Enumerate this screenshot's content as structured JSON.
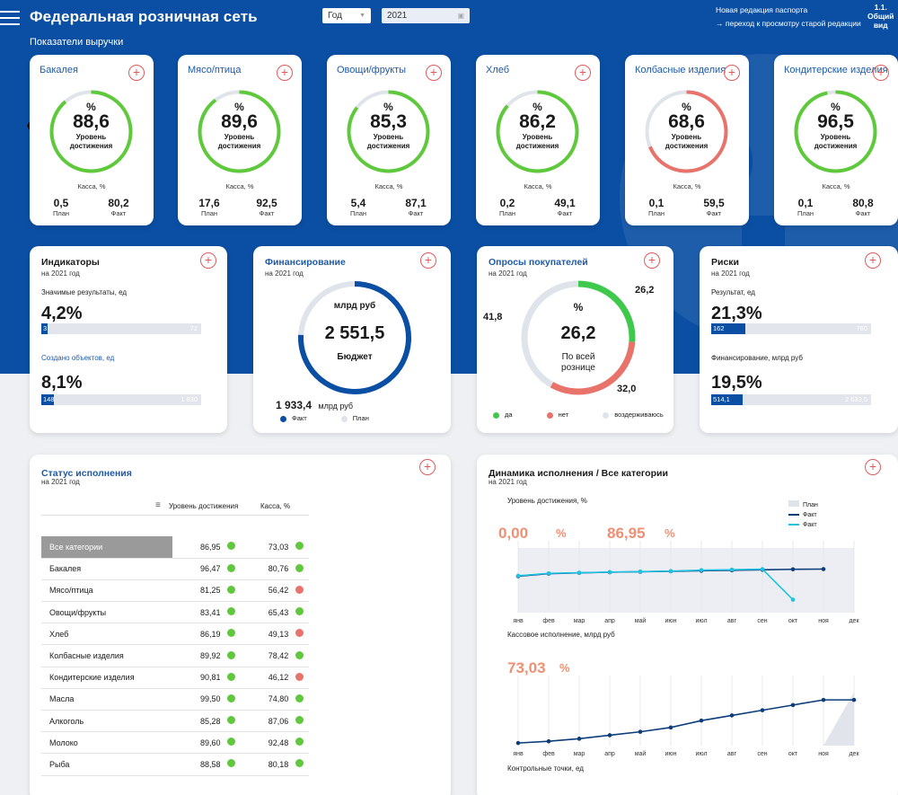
{
  "header": {
    "title": "Федеральная розничная сеть",
    "period_select": "Год",
    "year_select": "2021",
    "new_edition": "Новая редакция паспорта",
    "old_edition_link": "→ переход к просмотру старой редакции",
    "view_label_1": "1.1.",
    "view_label_2": "Общий",
    "view_label_3": "вид",
    "subtitle": "Показатели выручки"
  },
  "revenue": {
    "pct_symbol": "%",
    "level_label_1": "Уровень",
    "level_label_2": "достижения",
    "kassa_label": "Касса, %",
    "plan_label": "План",
    "fact_label": "Факт",
    "cards": [
      {
        "name": "Бакалея",
        "value": "88,6",
        "plan": "0,5",
        "fact": "80,2",
        "ratio": 0.886,
        "color": "#5fc93c"
      },
      {
        "name": "Мясо/птица",
        "value": "89,6",
        "plan": "17,6",
        "fact": "92,5",
        "ratio": 0.896,
        "color": "#5fc93c"
      },
      {
        "name": "Овощи/фрукты",
        "value": "85,3",
        "plan": "5,4",
        "fact": "87,1",
        "ratio": 0.853,
        "color": "#5fc93c"
      },
      {
        "name": "Хлеб",
        "value": "86,2",
        "plan": "0,2",
        "fact": "49,1",
        "ratio": 0.862,
        "color": "#5fc93c"
      },
      {
        "name": "Колбасные изделия",
        "value": "68,6",
        "plan": "0,1",
        "fact": "59,5",
        "ratio": 0.686,
        "color": "#e8736b"
      },
      {
        "name": "Кондитерские изделия",
        "value": "96,5",
        "plan": "0,1",
        "fact": "80,8",
        "ratio": 0.965,
        "color": "#5fc93c"
      }
    ]
  },
  "indicators": {
    "title": "Индикаторы",
    "sub": "на 2021 год",
    "label1": "Значимые результаты, ед",
    "value1": "4,2%",
    "bar1_fill": "3",
    "bar1_total": "72",
    "bar1_ratio": 0.042,
    "label2": "Создано объектов, ед",
    "value2": "8,1%",
    "bar2_fill": "148",
    "bar2_total": "1 830",
    "bar2_ratio": 0.081
  },
  "financing": {
    "title": "Финансирование",
    "sub": "на 2021 год",
    "unit": "млрд руб",
    "value": "2 551,5",
    "center_label": "Бюджет",
    "fact_value": "1 933,4",
    "fact_unit": "млрд руб",
    "legend_fact": "Факт",
    "legend_plan": "План",
    "fact_ratio": 0.758,
    "fact_color": "#0a4fa3",
    "plan_color": "#dfe3ea"
  },
  "surveys": {
    "title": "Опросы покупателей",
    "sub": "на 2021 год",
    "pct_symbol": "%",
    "value": "26,2",
    "center_label_1": "По всей",
    "center_label_2": "рознице",
    "yes_value": "26,2",
    "no_value": "32,0",
    "abstain_value": "41,8",
    "yes_ratio": 0.262,
    "no_ratio": 0.32,
    "abstain_ratio": 0.418,
    "legend_yes": "да",
    "legend_no": "нет",
    "legend_abstain": "воздерживаюсь",
    "yes_color": "#3ec94d",
    "no_color": "#e8736b",
    "abstain_color": "#dfe3ea"
  },
  "risks": {
    "title": "Риски",
    "sub": "на 2021 год",
    "label1": "Результат, ед",
    "value1": "21,3%",
    "bar1_fill": "162",
    "bar1_total": "760",
    "bar1_ratio": 0.213,
    "label2": "Финансирование, млрд руб",
    "value2": "19,5%",
    "bar2_fill": "514,1",
    "bar2_total": "2 633,5",
    "bar2_ratio": 0.195
  },
  "status": {
    "title": "Статус исполнения",
    "sub": "на 2021 год",
    "col_level": "Уровень достижения",
    "col_kassa": "Касса, %",
    "green": "#5fc93c",
    "red": "#e8736b",
    "rows": [
      {
        "name": "Все категории",
        "level": "86,95",
        "level_status": "green",
        "kassa": "73,03",
        "kassa_status": "green",
        "selected": true
      },
      {
        "name": "Бакалея",
        "level": "96,47",
        "level_status": "green",
        "kassa": "80,76",
        "kassa_status": "green"
      },
      {
        "name": "Мясо/птица",
        "level": "81,25",
        "level_status": "green",
        "kassa": "56,42",
        "kassa_status": "red"
      },
      {
        "name": "Овощи/фрукты",
        "level": "83,41",
        "level_status": "green",
        "kassa": "65,43",
        "kassa_status": "green"
      },
      {
        "name": "Хлеб",
        "level": "86,19",
        "level_status": "green",
        "kassa": "49,13",
        "kassa_status": "red"
      },
      {
        "name": "Колбасные изделия",
        "level": "89,92",
        "level_status": "green",
        "kassa": "78,42",
        "kassa_status": "green"
      },
      {
        "name": "Кондитерские изделия",
        "level": "90,81",
        "level_status": "green",
        "kassa": "46,12",
        "kassa_status": "red"
      },
      {
        "name": "Масла",
        "level": "99,50",
        "level_status": "green",
        "kassa": "74,80",
        "kassa_status": "green"
      },
      {
        "name": "Алкоголь",
        "level": "85,28",
        "level_status": "green",
        "kassa": "87,06",
        "kassa_status": "green"
      },
      {
        "name": "Молоко",
        "level": "89,60",
        "level_status": "green",
        "kassa": "92,48",
        "kassa_status": "green"
      },
      {
        "name": "Рыба",
        "level": "88,58",
        "level_status": "green",
        "kassa": "80,18",
        "kassa_status": "green"
      }
    ]
  },
  "dynamics": {
    "title": "Динамика исполнения /  Все категории",
    "sub": "на 2021 год",
    "chart1_label": "Уровень достижения, %",
    "kpi_plan": "0,00",
    "kpi_fact": "86,95",
    "kpi_pct": "%",
    "legend_plan": "План",
    "legend_fact_dark": "Факт",
    "legend_fact_light": "Факт",
    "chart2_label": "Кассовое исполнение, млрд руб",
    "kpi_kassa": "73,03",
    "bottom_label": "Контрольные точки, ед"
  },
  "chart_data": [
    {
      "type": "line",
      "x": [
        "янв",
        "фев",
        "мар",
        "апр",
        "май",
        "июн",
        "июл",
        "авг",
        "сен",
        "окт",
        "ноя",
        "дек"
      ],
      "series": [
        {
          "name": "Факт",
          "color": "#0a3d7a",
          "values": [
            82.5,
            84.1,
            84.6,
            85.0,
            85.3,
            85.6,
            85.9,
            86.2,
            86.5,
            86.8,
            86.95,
            null
          ]
        },
        {
          "name": "Факт",
          "color": "#1fc2e0",
          "values": [
            82.8,
            84.3,
            84.7,
            85.1,
            85.4,
            85.7,
            86.3,
            86.6,
            86.9,
            68.0,
            null,
            null
          ]
        }
      ],
      "ylim": [
        60,
        100
      ]
    },
    {
      "type": "line",
      "x": [
        "янв",
        "фев",
        "мар",
        "апр",
        "май",
        "июн",
        "июл",
        "авг",
        "сен",
        "окт",
        "ноя",
        "дек"
      ],
      "series": [
        {
          "name": "Факт",
          "color": "#0a3d7a",
          "values": [
            3,
            5,
            8,
            12,
            16,
            21,
            29,
            35,
            41,
            47,
            53,
            53
          ]
        }
      ],
      "ylim": [
        0,
        75
      ]
    }
  ]
}
